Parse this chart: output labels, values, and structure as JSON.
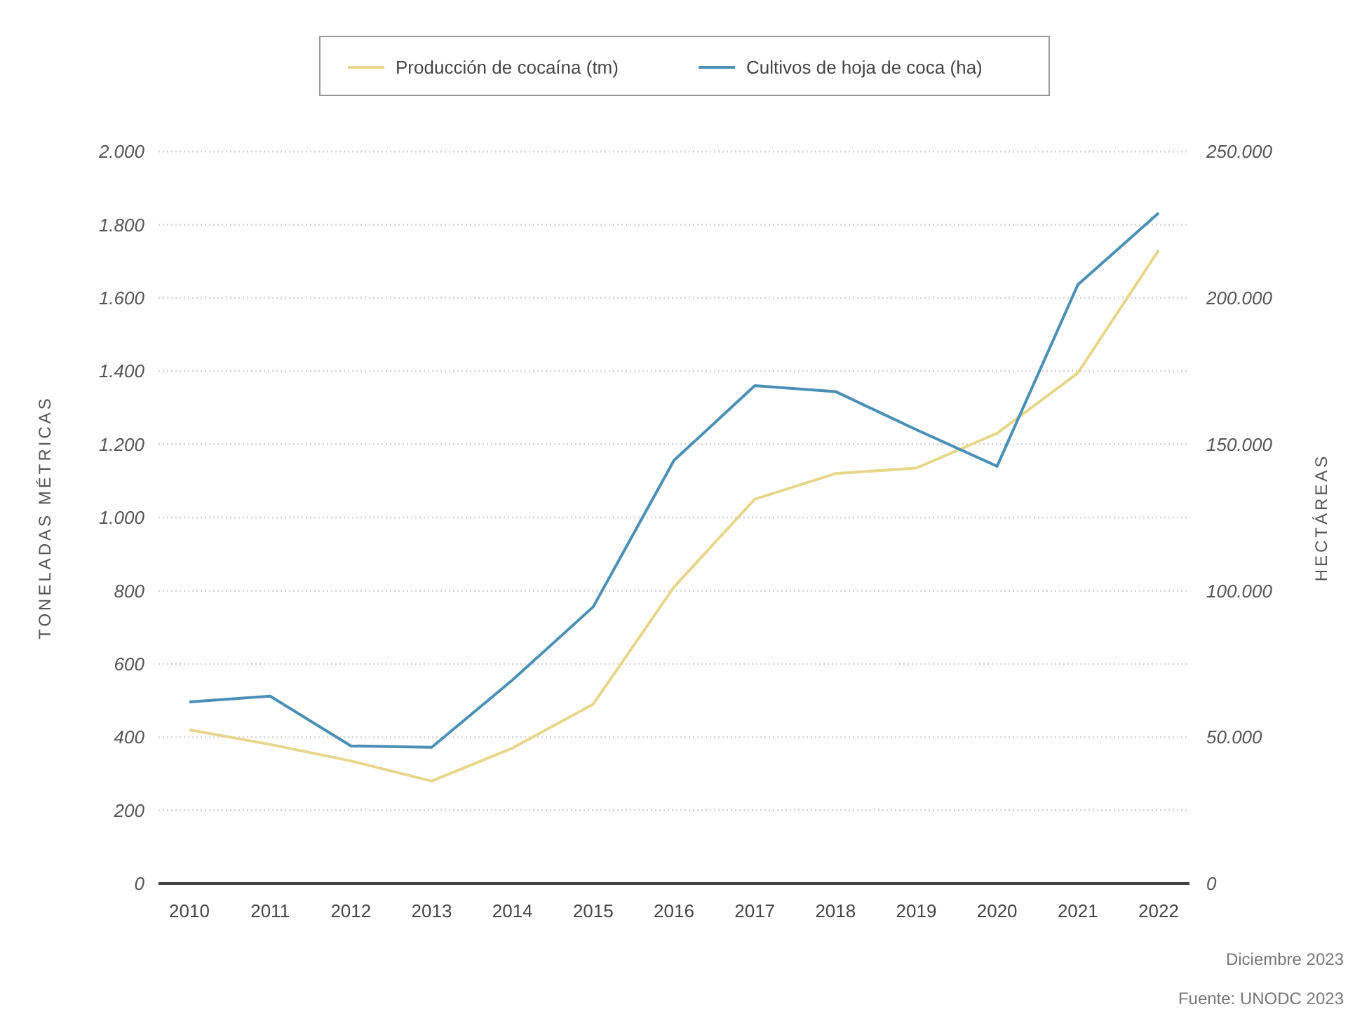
{
  "chart_data": {
    "type": "line",
    "categories": [
      "2010",
      "2011",
      "2012",
      "2013",
      "2014",
      "2015",
      "2016",
      "2017",
      "2018",
      "2019",
      "2020",
      "2021",
      "2022"
    ],
    "series": [
      {
        "name": "Producción de cocaína (tm)",
        "color": "#e6d68a",
        "values": [
          420,
          380,
          335,
          280,
          370,
          490,
          810,
          1050,
          1120,
          1135,
          1230,
          1395,
          1730
        ]
      },
      {
        "name": "Cultivos de hoja de coca (ha)",
        "color": "#4a8fb5",
        "axis": "y2",
        "values": [
          62000,
          64000,
          47000,
          46500,
          69500,
          94500,
          144500,
          170000,
          168000,
          155000,
          142500,
          204500,
          229000
        ]
      }
    ],
    "ylabel": "TONELADAS MÉTRICAS",
    "y2label": "HECTÁREAS",
    "ylim": [
      0,
      2000
    ],
    "yticks": [
      {
        "value": 0,
        "label": "0"
      },
      {
        "value": 200,
        "label": "200"
      },
      {
        "value": 400,
        "label": "400"
      },
      {
        "value": 600,
        "label": "600"
      },
      {
        "value": 800,
        "label": "800"
      },
      {
        "value": 1000,
        "label": "1.000"
      },
      {
        "value": 1200,
        "label": "1.200"
      },
      {
        "value": 1400,
        "label": "1.400"
      },
      {
        "value": 1600,
        "label": "1.600"
      },
      {
        "value": 1800,
        "label": "1.800"
      },
      {
        "value": 2000,
        "label": "2.000"
      }
    ],
    "y2lim": [
      0,
      250000
    ],
    "y2ticks": [
      {
        "value": 0,
        "label": "0"
      },
      {
        "value": 50000,
        "label": "50.000"
      },
      {
        "value": 100000,
        "label": "100.000"
      },
      {
        "value": 150000,
        "label": "150.000"
      },
      {
        "value": 200000,
        "label": "200.000"
      },
      {
        "value": 250000,
        "label": "250.000"
      }
    ],
    "grid": "y",
    "legend": "top",
    "line_style": "solid",
    "annotations": [
      "Diciembre 2023",
      "Fuente: UNODC 2023"
    ]
  }
}
